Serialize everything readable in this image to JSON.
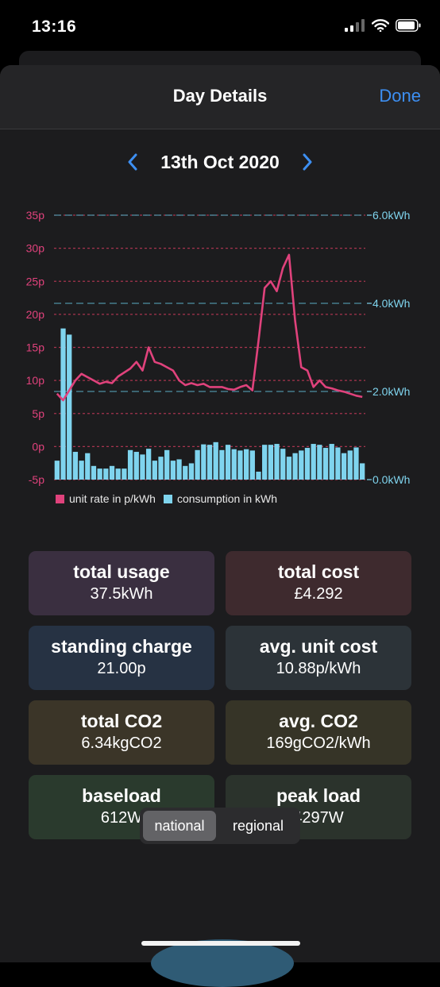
{
  "status": {
    "time": "13:16"
  },
  "nav": {
    "title": "Day Details",
    "done": "Done"
  },
  "date": "13th Oct 2020",
  "colors": {
    "rate": "#e0427c",
    "consumption": "#7fd4ee",
    "accent": "#3d8ff2"
  },
  "chart_data": {
    "type": "bar+line",
    "left_axis": {
      "ticks": [
        "35p",
        "30p",
        "25p",
        "20p",
        "15p",
        "10p",
        "5p",
        "0p",
        "-5p"
      ],
      "range": [
        -5,
        35
      ]
    },
    "right_axis": {
      "ticks": [
        "6.0kWh",
        "4.0kWh",
        "2.0kWh",
        "0.0kWh"
      ],
      "range": [
        0,
        6
      ]
    },
    "legend": [
      "unit rate in p/kWh",
      "consumption in kWh"
    ],
    "consumption": [
      0.43,
      3.43,
      3.29,
      0.63,
      0.43,
      0.6,
      0.31,
      0.25,
      0.25,
      0.31,
      0.25,
      0.25,
      0.67,
      0.63,
      0.57,
      0.7,
      0.43,
      0.52,
      0.67,
      0.43,
      0.46,
      0.31,
      0.37,
      0.67,
      0.8,
      0.79,
      0.85,
      0.67,
      0.79,
      0.69,
      0.66,
      0.69,
      0.66,
      0.18,
      0.79,
      0.79,
      0.81,
      0.7,
      0.52,
      0.6,
      0.66,
      0.72,
      0.81,
      0.79,
      0.72,
      0.81,
      0.73,
      0.6,
      0.66,
      0.73,
      0.37
    ],
    "unit_rate": [
      8,
      7,
      8.5,
      10,
      11,
      10.5,
      10,
      9.5,
      9.8,
      9.6,
      10.6,
      11.2,
      11.8,
      12.8,
      11.5,
      15,
      12.8,
      12.5,
      12,
      11.5,
      10,
      9.3,
      9.6,
      9.3,
      9.5,
      9,
      9,
      9,
      8.7,
      8.6,
      9,
      9.3,
      8.5,
      16,
      24,
      25,
      23.5,
      27,
      29,
      19,
      12,
      11.5,
      9,
      10,
      9,
      8.8,
      8.5,
      8.3,
      8,
      7.7,
      7.5
    ]
  },
  "cards": [
    {
      "title": "total usage",
      "value": "37.5kWh",
      "bg": "#3a2f40"
    },
    {
      "title": "total cost",
      "value": "£4.292",
      "bg": "#3e2a2e"
    },
    {
      "title": "standing charge",
      "value": "21.00p",
      "bg": "#263243"
    },
    {
      "title": "avg. unit cost",
      "value": "10.88p/kWh",
      "bg": "#2c3338"
    },
    {
      "title": "total CO2",
      "value": "6.34kgCO2",
      "bg": "#3b3528"
    },
    {
      "title": "avg. CO2",
      "value": "169gCO2/kWh",
      "bg": "#363427"
    },
    {
      "title": "baseload",
      "value": "612W",
      "bg": "#2a3a2d"
    },
    {
      "title": "peak load",
      "value": "4297W",
      "bg": "#2b332c"
    }
  ],
  "segment": {
    "options": [
      "national",
      "regional"
    ],
    "selected": "national"
  }
}
